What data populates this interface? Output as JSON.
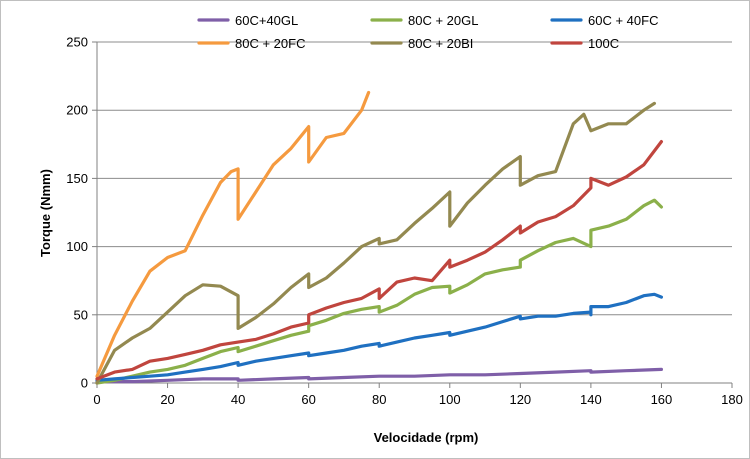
{
  "chart_data": {
    "type": "line",
    "xlabel": "Velocidade (rpm)",
    "ylabel": "Torque (Nmm)",
    "xlim": [
      0,
      180
    ],
    "ylim": [
      0,
      250
    ],
    "xticks": [
      0,
      20,
      40,
      60,
      80,
      100,
      120,
      140,
      160,
      180
    ],
    "yticks": [
      0,
      50,
      100,
      150,
      200,
      250
    ],
    "grid": "horizontal",
    "legend_position": "top",
    "series": [
      {
        "name": "60C+40GL",
        "color": "#7F5FA8",
        "points": [
          [
            0,
            1
          ],
          [
            10,
            1
          ],
          [
            20,
            2
          ],
          [
            30,
            3
          ],
          [
            40,
            3
          ],
          [
            40,
            2
          ],
          [
            50,
            3
          ],
          [
            60,
            4
          ],
          [
            60,
            3
          ],
          [
            70,
            4
          ],
          [
            80,
            5
          ],
          [
            90,
            5
          ],
          [
            100,
            6
          ],
          [
            110,
            6
          ],
          [
            120,
            7
          ],
          [
            130,
            8
          ],
          [
            140,
            9
          ],
          [
            140,
            8
          ],
          [
            150,
            9
          ],
          [
            160,
            10
          ]
        ]
      },
      {
        "name": "80C + 20GL",
        "color": "#8BB04A",
        "points": [
          [
            0,
            0
          ],
          [
            5,
            2
          ],
          [
            10,
            5
          ],
          [
            15,
            8
          ],
          [
            20,
            10
          ],
          [
            25,
            13
          ],
          [
            30,
            18
          ],
          [
            35,
            23
          ],
          [
            40,
            26
          ],
          [
            40,
            23
          ],
          [
            45,
            27
          ],
          [
            50,
            31
          ],
          [
            55,
            35
          ],
          [
            60,
            38
          ],
          [
            60,
            42
          ],
          [
            65,
            46
          ],
          [
            70,
            51
          ],
          [
            75,
            54
          ],
          [
            80,
            56
          ],
          [
            80,
            52
          ],
          [
            85,
            57
          ],
          [
            90,
            65
          ],
          [
            95,
            70
          ],
          [
            100,
            71
          ],
          [
            100,
            66
          ],
          [
            105,
            72
          ],
          [
            110,
            80
          ],
          [
            115,
            83
          ],
          [
            120,
            85
          ],
          [
            120,
            90
          ],
          [
            125,
            97
          ],
          [
            130,
            103
          ],
          [
            135,
            106
          ],
          [
            140,
            100
          ],
          [
            140,
            112
          ],
          [
            145,
            115
          ],
          [
            150,
            120
          ],
          [
            155,
            130
          ],
          [
            158,
            134
          ],
          [
            160,
            129
          ]
        ]
      },
      {
        "name": "60C + 40FC",
        "color": "#1F70C1",
        "points": [
          [
            0,
            2
          ],
          [
            5,
            3
          ],
          [
            10,
            4
          ],
          [
            15,
            5
          ],
          [
            20,
            6
          ],
          [
            25,
            8
          ],
          [
            30,
            10
          ],
          [
            35,
            12
          ],
          [
            40,
            15
          ],
          [
            40,
            13
          ],
          [
            45,
            16
          ],
          [
            50,
            18
          ],
          [
            55,
            20
          ],
          [
            60,
            22
          ],
          [
            60,
            20
          ],
          [
            65,
            22
          ],
          [
            70,
            24
          ],
          [
            75,
            27
          ],
          [
            80,
            29
          ],
          [
            80,
            27
          ],
          [
            85,
            30
          ],
          [
            90,
            33
          ],
          [
            95,
            35
          ],
          [
            100,
            37
          ],
          [
            100,
            35
          ],
          [
            105,
            38
          ],
          [
            110,
            41
          ],
          [
            115,
            45
          ],
          [
            120,
            49
          ],
          [
            120,
            47
          ],
          [
            125,
            49
          ],
          [
            130,
            49
          ],
          [
            135,
            51
          ],
          [
            140,
            52
          ],
          [
            140,
            50
          ],
          [
            140,
            56
          ],
          [
            145,
            56
          ],
          [
            150,
            59
          ],
          [
            155,
            64
          ],
          [
            158,
            65
          ],
          [
            160,
            63
          ]
        ]
      },
      {
        "name": "80C + 20FC",
        "color": "#F59A3F",
        "points": [
          [
            0,
            5
          ],
          [
            5,
            35
          ],
          [
            10,
            60
          ],
          [
            15,
            82
          ],
          [
            20,
            92
          ],
          [
            25,
            97
          ],
          [
            30,
            123
          ],
          [
            35,
            147
          ],
          [
            38,
            155
          ],
          [
            40,
            157
          ],
          [
            40,
            120
          ],
          [
            45,
            140
          ],
          [
            50,
            160
          ],
          [
            55,
            172
          ],
          [
            60,
            188
          ],
          [
            60,
            162
          ],
          [
            65,
            180
          ],
          [
            70,
            183
          ],
          [
            75,
            200
          ],
          [
            77,
            213
          ]
        ]
      },
      {
        "name": "80C + 20BI",
        "color": "#938950",
        "points": [
          [
            0,
            0
          ],
          [
            5,
            24
          ],
          [
            10,
            33
          ],
          [
            15,
            40
          ],
          [
            20,
            52
          ],
          [
            25,
            64
          ],
          [
            30,
            72
          ],
          [
            35,
            71
          ],
          [
            40,
            64
          ],
          [
            40,
            40
          ],
          [
            45,
            48
          ],
          [
            50,
            58
          ],
          [
            55,
            70
          ],
          [
            60,
            80
          ],
          [
            60,
            70
          ],
          [
            65,
            77
          ],
          [
            70,
            88
          ],
          [
            75,
            100
          ],
          [
            80,
            106
          ],
          [
            80,
            102
          ],
          [
            85,
            105
          ],
          [
            90,
            117
          ],
          [
            95,
            128
          ],
          [
            100,
            140
          ],
          [
            100,
            115
          ],
          [
            105,
            132
          ],
          [
            110,
            145
          ],
          [
            115,
            157
          ],
          [
            120,
            166
          ],
          [
            120,
            145
          ],
          [
            125,
            152
          ],
          [
            130,
            155
          ],
          [
            135,
            190
          ],
          [
            138,
            197
          ],
          [
            140,
            185
          ],
          [
            145,
            190
          ],
          [
            150,
            190
          ],
          [
            155,
            200
          ],
          [
            158,
            205
          ]
        ]
      },
      {
        "name": "100C",
        "color": "#C0453E",
        "points": [
          [
            0,
            3
          ],
          [
            5,
            8
          ],
          [
            10,
            10
          ],
          [
            15,
            16
          ],
          [
            20,
            18
          ],
          [
            25,
            21
          ],
          [
            30,
            24
          ],
          [
            35,
            28
          ],
          [
            40,
            30
          ],
          [
            45,
            32
          ],
          [
            50,
            36
          ],
          [
            55,
            41
          ],
          [
            60,
            44
          ],
          [
            60,
            50
          ],
          [
            65,
            55
          ],
          [
            70,
            59
          ],
          [
            75,
            62
          ],
          [
            80,
            69
          ],
          [
            80,
            62
          ],
          [
            85,
            74
          ],
          [
            90,
            77
          ],
          [
            95,
            75
          ],
          [
            100,
            90
          ],
          [
            100,
            85
          ],
          [
            105,
            90
          ],
          [
            110,
            96
          ],
          [
            115,
            105
          ],
          [
            120,
            115
          ],
          [
            120,
            110
          ],
          [
            125,
            118
          ],
          [
            130,
            122
          ],
          [
            135,
            130
          ],
          [
            140,
            143
          ],
          [
            140,
            150
          ],
          [
            145,
            145
          ],
          [
            150,
            151
          ],
          [
            155,
            160
          ],
          [
            160,
            177
          ]
        ]
      }
    ]
  }
}
